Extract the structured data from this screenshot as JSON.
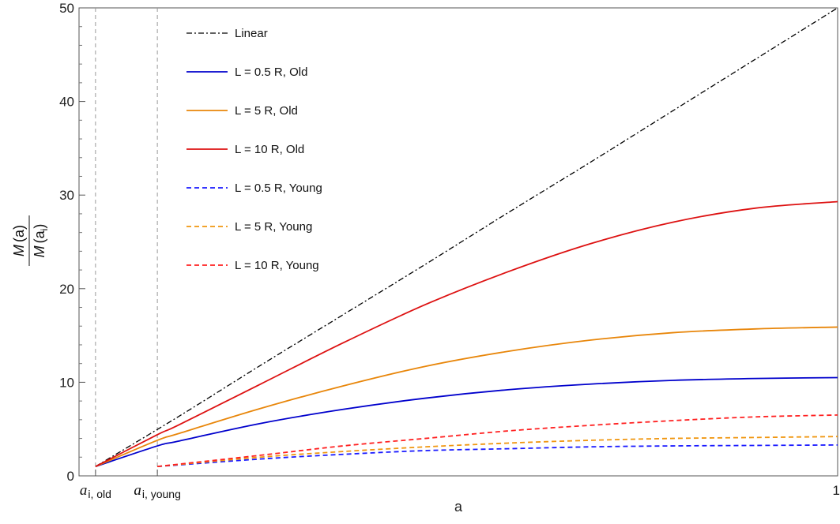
{
  "chart_data": {
    "type": "line",
    "xlabel": "a",
    "ylabel": {
      "numerator": {
        "main": "M",
        "arg": "(a)"
      },
      "denominator": {
        "main": "M",
        "arg_open": "(a",
        "arg_sub": "i",
        "arg_close": ")"
      }
    },
    "xlim": [
      0.08,
      1.0
    ],
    "ylim": [
      0,
      50
    ],
    "y_ticks": [
      0,
      10,
      20,
      30,
      40,
      50
    ],
    "x_ticks": [
      {
        "value": 0.1,
        "main": "a",
        "sub": "i, old"
      },
      {
        "value": 0.175,
        "main": "a",
        "sub": "i, young"
      },
      {
        "value": 1.0,
        "label": "1"
      }
    ],
    "vlines": [
      0.1,
      0.175
    ],
    "grid": false,
    "legend_position": "top-left",
    "series": [
      {
        "name": "Linear",
        "color": "#000000",
        "style": "dashdot",
        "x": [
          0.1,
          0.2,
          0.3,
          0.4,
          0.5,
          0.6,
          0.7,
          0.8,
          0.9,
          1.0
        ],
        "y": [
          1.0,
          6.3,
          11.8,
          17.2,
          22.6,
          28.1,
          33.5,
          39.0,
          44.5,
          50.0
        ]
      },
      {
        "name": "L = 0.5 R, Old",
        "color": "#0000cc",
        "style": "solid",
        "x": [
          0.1,
          0.175,
          0.2,
          0.3,
          0.4,
          0.5,
          0.6,
          0.7,
          0.8,
          0.9,
          1.0
        ],
        "y": [
          1.0,
          3.2,
          3.7,
          5.6,
          7.1,
          8.3,
          9.2,
          9.8,
          10.2,
          10.4,
          10.5
        ]
      },
      {
        "name": "L = 5 R, Old",
        "color": "#e8860a",
        "style": "solid",
        "x": [
          0.1,
          0.175,
          0.2,
          0.3,
          0.4,
          0.5,
          0.6,
          0.7,
          0.8,
          0.9,
          1.0
        ],
        "y": [
          1.0,
          3.8,
          4.5,
          7.2,
          9.6,
          11.7,
          13.3,
          14.5,
          15.3,
          15.7,
          15.9
        ]
      },
      {
        "name": "L = 10 R, Old",
        "color": "#dd1111",
        "style": "solid",
        "x": [
          0.1,
          0.175,
          0.2,
          0.3,
          0.4,
          0.5,
          0.6,
          0.7,
          0.8,
          0.9,
          1.0
        ],
        "y": [
          1.0,
          4.4,
          5.4,
          9.8,
          14.2,
          18.3,
          21.8,
          24.8,
          27.1,
          28.6,
          29.3
        ]
      },
      {
        "name": "L = 0.5 R, Young",
        "color": "#1a1aff",
        "style": "dashed",
        "x": [
          0.175,
          0.3,
          0.4,
          0.5,
          0.6,
          0.7,
          0.8,
          0.9,
          1.0
        ],
        "y": [
          1.0,
          1.8,
          2.3,
          2.7,
          2.9,
          3.1,
          3.2,
          3.25,
          3.3
        ]
      },
      {
        "name": "L = 5 R, Young",
        "color": "#f0960f",
        "style": "dashed",
        "x": [
          0.175,
          0.3,
          0.4,
          0.5,
          0.6,
          0.7,
          0.8,
          0.9,
          1.0
        ],
        "y": [
          1.0,
          2.0,
          2.6,
          3.1,
          3.5,
          3.8,
          4.0,
          4.1,
          4.2
        ]
      },
      {
        "name": "L = 10 R, Young",
        "color": "#ff2020",
        "style": "dashed",
        "x": [
          0.175,
          0.3,
          0.4,
          0.5,
          0.6,
          0.7,
          0.8,
          0.9,
          1.0
        ],
        "y": [
          1.0,
          2.2,
          3.2,
          4.0,
          4.8,
          5.4,
          5.9,
          6.3,
          6.5
        ]
      }
    ]
  }
}
